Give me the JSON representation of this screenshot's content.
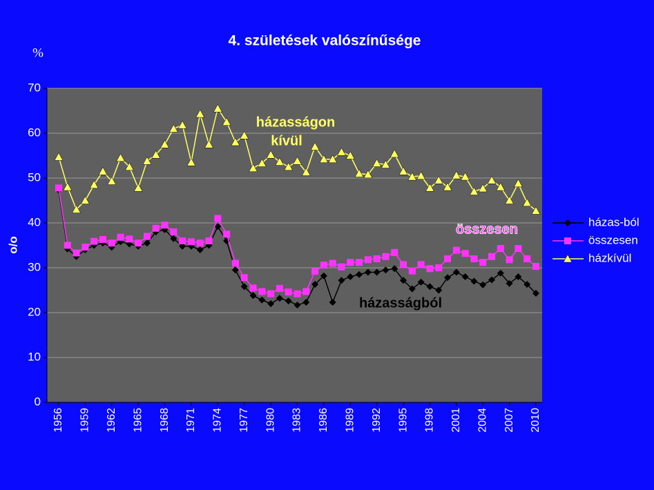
{
  "chart_data": {
    "type": "line",
    "title": "4. születések valószínűsége",
    "unit_label": "%",
    "y_label": "o/o",
    "x": [
      1956,
      1957,
      1958,
      1959,
      1960,
      1961,
      1962,
      1963,
      1964,
      1965,
      1966,
      1967,
      1968,
      1969,
      1970,
      1971,
      1972,
      1973,
      1974,
      1975,
      1976,
      1977,
      1978,
      1979,
      1980,
      1981,
      1982,
      1983,
      1984,
      1985,
      1986,
      1987,
      1988,
      1989,
      1990,
      1991,
      1992,
      1993,
      1994,
      1995,
      1996,
      1997,
      1998,
      1999,
      2000,
      2001,
      2002,
      2003,
      2004,
      2005,
      2006,
      2007,
      2008,
      2009,
      2010
    ],
    "xlim": [
      1956,
      2010
    ],
    "xticks": [
      1956,
      1959,
      1962,
      1965,
      1968,
      1971,
      1974,
      1977,
      1980,
      1983,
      1986,
      1989,
      1992,
      1995,
      1998,
      2001,
      2004,
      2007,
      2010
    ],
    "ylim": [
      0,
      70
    ],
    "yticks": [
      0,
      10,
      20,
      30,
      40,
      50,
      60,
      70
    ],
    "grid": true,
    "legend": "right",
    "series": [
      {
        "name": "házas-ból",
        "color": "#000000",
        "marker": "diamond",
        "values": [
          47.3,
          34.2,
          32.5,
          34,
          35,
          35.5,
          34.6,
          35.8,
          35.3,
          34.8,
          35.5,
          38,
          38.5,
          36.5,
          34.8,
          34.8,
          34,
          35,
          39.2,
          36,
          29.5,
          25.8,
          23.8,
          22.8,
          22,
          23.2,
          22.6,
          21.7,
          22.3,
          26.3,
          28.2,
          22.3,
          27.2,
          28,
          28.5,
          29,
          29,
          29.5,
          29.8,
          27.2,
          25.3,
          26.8,
          25.8,
          25,
          27.8,
          29,
          28,
          27,
          26.2,
          27.3,
          28.8,
          26.5,
          28,
          26.3,
          24.3
        ]
      },
      {
        "name": "összesen",
        "color": "#ff33ff",
        "marker": "square",
        "values": [
          47.8,
          35,
          33.3,
          34.6,
          35.9,
          36.3,
          35.5,
          36.8,
          36.4,
          35.5,
          37,
          38.8,
          39.5,
          38,
          36,
          35.8,
          35.5,
          36,
          41,
          37.5,
          31,
          27.8,
          25.5,
          24.7,
          24.2,
          25.4,
          24.6,
          24.2,
          24.7,
          29.2,
          30.6,
          31,
          30.2,
          31.2,
          31.2,
          31.8,
          32,
          32.5,
          33.4,
          30.7,
          29.3,
          30.7,
          29.8,
          30,
          32,
          33.9,
          33.2,
          32,
          31.2,
          32.5,
          34.3,
          31.8,
          34.3,
          32,
          30.3
        ]
      },
      {
        "name": "házkívül",
        "color": "#ffff66",
        "marker": "triangle",
        "values": [
          54.7,
          48,
          43,
          45,
          48.5,
          51.5,
          49.3,
          54.5,
          52.5,
          47.8,
          53.8,
          55.2,
          57.5,
          61,
          61.8,
          53.5,
          64.3,
          57.5,
          65.5,
          62.5,
          58,
          59.5,
          52.2,
          53.3,
          55.2,
          53.6,
          52.5,
          53.8,
          51.3,
          57,
          54.2,
          54.2,
          55.8,
          55,
          51,
          50.8,
          53.3,
          53,
          55.4,
          51.5,
          50.3,
          50.5,
          47.8,
          49.5,
          48,
          50.6,
          50.3,
          47,
          47.7,
          49.5,
          48,
          45,
          48.8,
          44.5,
          42.7
        ]
      }
    ],
    "annotations": [
      {
        "text": "házasságon",
        "color": "#ffff66"
      },
      {
        "text": "kívül",
        "color": "#ffff66"
      },
      {
        "text": "összesen",
        "color": "#ff33ff"
      },
      {
        "text": "házasságból",
        "color": "#000000"
      }
    ]
  }
}
